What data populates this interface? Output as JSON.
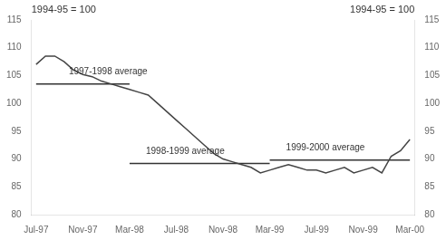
{
  "chart_data": {
    "type": "line",
    "ylabel": "1994-95 = 100",
    "y2label": "1994-95 = 100",
    "xlim": [
      -0.2,
      16.2
    ],
    "xticks": [
      {
        "value": 0,
        "label": "Jul-97"
      },
      {
        "value": 2,
        "label": "Nov-97"
      },
      {
        "value": 4,
        "label": "Mar-98"
      },
      {
        "value": 6,
        "label": "Jul-98"
      },
      {
        "value": 8,
        "label": "Nov-98"
      },
      {
        "value": 10,
        "label": "Mar-99"
      },
      {
        "value": 12,
        "label": "Jul-99"
      },
      {
        "value": 14,
        "label": "Nov-99"
      },
      {
        "value": 16,
        "label": "Mar-00"
      }
    ],
    "ylim": [
      80,
      115
    ],
    "yticks": [
      80,
      85,
      90,
      95,
      100,
      105,
      110,
      115
    ],
    "y2lim": [
      80,
      115
    ],
    "y2ticks": [
      80,
      85,
      90,
      95,
      100,
      105,
      110,
      115
    ],
    "grid": false,
    "series": [
      {
        "color": "#444444",
        "x": [
          0,
          0.4,
          0.8,
          1.2,
          1.6,
          2.0,
          2.4,
          2.8,
          3.2,
          3.6,
          4.0,
          4.4,
          4.8,
          5.2,
          5.6,
          6.0,
          6.4,
          6.8,
          7.2,
          7.6,
          8.0,
          8.4,
          8.8,
          9.2,
          9.6,
          10.0,
          10.4,
          10.8,
          11.2,
          11.6,
          12.0,
          12.4,
          12.8,
          13.2,
          13.6,
          14.0,
          14.4,
          14.8,
          15.2,
          15.6,
          16.0
        ],
        "values": [
          107.0,
          108.5,
          108.5,
          107.5,
          106.0,
          105.2,
          104.8,
          104.0,
          103.5,
          103.0,
          102.5,
          102.0,
          101.5,
          100.0,
          98.5,
          97.0,
          95.5,
          94.0,
          92.5,
          91.0,
          90.0,
          89.5,
          89.0,
          88.5,
          87.5,
          88.0,
          88.5,
          89.0,
          88.5,
          88.0,
          88.0,
          87.5,
          88.0,
          88.5,
          87.5,
          88.0,
          88.5,
          87.5,
          90.5,
          91.5,
          93.5
        ]
      },
      {
        "color": "#333333",
        "x": [
          0,
          4
        ],
        "values": [
          103.5,
          103.5
        ]
      },
      {
        "color": "#333333",
        "x": [
          4,
          10
        ],
        "values": [
          89.2,
          89.2
        ]
      },
      {
        "color": "#333333",
        "x": [
          10,
          16
        ],
        "values": [
          89.8,
          89.8
        ]
      }
    ],
    "annotations": [
      {
        "text": "1997-1998 average",
        "x": 1.4,
        "y": 104.8
      },
      {
        "text": "1998-1999 average",
        "x": 4.7,
        "y": 90.5
      },
      {
        "text": "1999-2000 average",
        "x": 10.7,
        "y": 91.2
      }
    ]
  }
}
